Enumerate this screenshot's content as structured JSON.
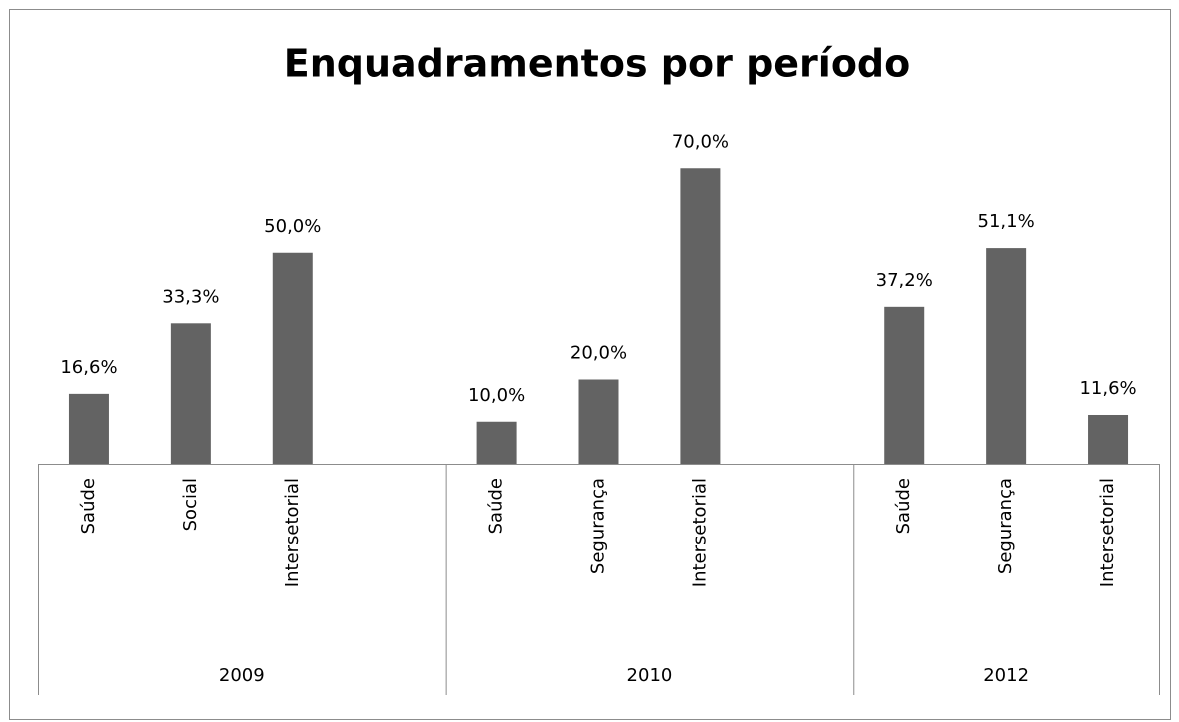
{
  "chart_data": {
    "type": "bar",
    "title": "Enquadramentos por período",
    "color": "#636363",
    "ylim": [
      0,
      80
    ],
    "groups": [
      {
        "name": "2009",
        "categories": [
          "Saúde",
          "Social",
          "Intersetorial",
          null
        ],
        "values": [
          16.6,
          33.3,
          50.0,
          null
        ],
        "value_labels": [
          "16,6%",
          "33,3%",
          "50,0%",
          null
        ]
      },
      {
        "name": "2010",
        "categories": [
          "Saúde",
          "Segurança",
          "Intersetorial",
          null
        ],
        "values": [
          10.0,
          20.0,
          70.0,
          null
        ],
        "value_labels": [
          "10,0%",
          "20,0%",
          "70,0%",
          null
        ]
      },
      {
        "name": "2012",
        "categories": [
          "Saúde",
          "Segurança",
          "Intersetorial"
        ],
        "values": [
          37.2,
          51.1,
          11.6
        ],
        "value_labels": [
          "37,2%",
          "51,1%",
          "11,6%"
        ]
      }
    ]
  }
}
